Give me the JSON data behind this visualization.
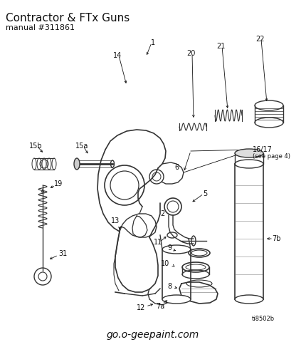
{
  "title": "Contractor & FTx Guns",
  "subtitle": "manual #311861",
  "footer_code": "ti8502b",
  "footer_url": "go.o-geepaint.com",
  "bg_color": "#ffffff",
  "line_color": "#333333",
  "text_color": "#111111",
  "figsize": [
    4.3,
    4.87
  ],
  "dpi": 100
}
